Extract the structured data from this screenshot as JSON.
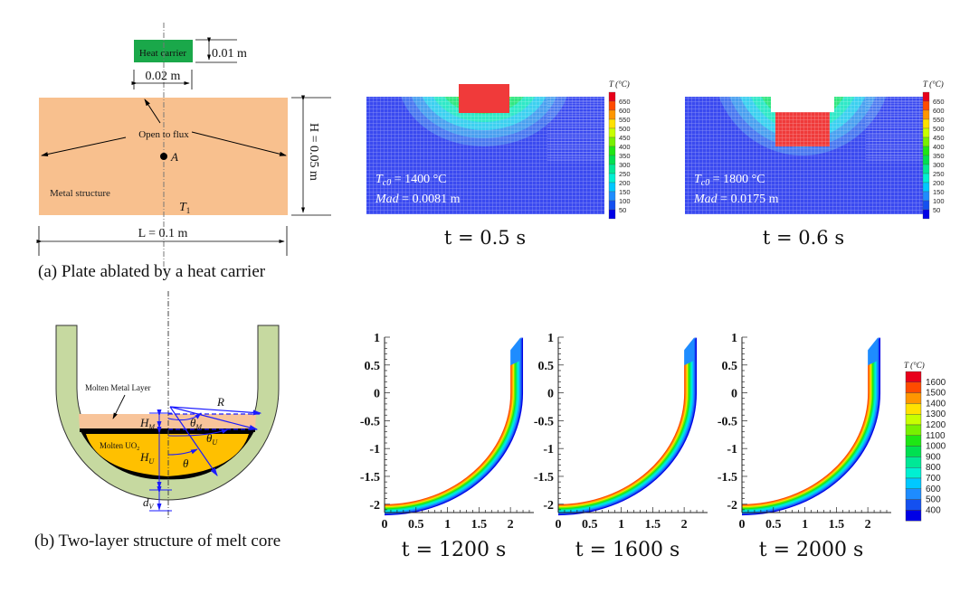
{
  "panel_a": {
    "caption": "(a) Plate ablated by a heat carrier",
    "heat_carrier_label": "Heat carrier",
    "carrier_height_dim": "0.01 m",
    "carrier_width_dim": "0.02 m",
    "open_flux_label": "Open to flux",
    "point_label": "A",
    "structure_label": "Metal structure",
    "temp_label": "T",
    "temp_sub": "1",
    "length_dim": "L = 0.1 m",
    "height_dim": "H = 0.05 m",
    "colors": {
      "plate": "#f8c08e",
      "carrier": "#1aa84a"
    }
  },
  "contour_top": {
    "legend_title": "T (°C)",
    "legend_values": [
      "650",
      "600",
      "550",
      "500",
      "450",
      "400",
      "350",
      "300",
      "250",
      "200",
      "150",
      "100",
      "50"
    ],
    "plots": [
      {
        "tc0": "T_c0 = 1400 °C",
        "tc0_main": "T",
        "tc0_sub": "c0",
        "tc0_rest": " = 1400 °C",
        "mad_main": "Mad",
        "mad_rest": " = 0.0081 m",
        "time": "t = 0.5 s"
      },
      {
        "tc0": "T_c0 = 1800 °C",
        "tc0_main": "T",
        "tc0_sub": "c0",
        "tc0_rest": " = 1800 °C",
        "mad_main": "Mad",
        "mad_rest": " = 0.0175 m",
        "time": "t = 0.6 s"
      }
    ]
  },
  "panel_b": {
    "caption": "(b) Two-layer structure of melt core",
    "metal_layer_label": "Molten Metal Layer",
    "uo2_label": "Molten UO",
    "uo2_sub": "2",
    "R": "R",
    "HM": "H",
    "HM_sub": "M",
    "HU": "H",
    "HU_sub": "U",
    "dV": "d",
    "dV_sub": "V",
    "thetaM": "θ",
    "thetaM_sub": "M",
    "thetaU": "θ",
    "thetaU_sub": "U",
    "theta": "θ",
    "colors": {
      "wall": "#c6d9a0",
      "metal": "#f8c49a",
      "uo2": "#ffc000",
      "crust": "#000000",
      "dim": "#1a1aff"
    }
  },
  "contour_bottom": {
    "legend_title": "T (°C)",
    "legend_values": [
      "1600",
      "1500",
      "1400",
      "1300",
      "1200",
      "1100",
      "1000",
      "900",
      "800",
      "700",
      "600",
      "500",
      "400"
    ],
    "y_ticks": [
      "1",
      "0.5",
      "0",
      "-0.5",
      "-1",
      "-1.5",
      "-2"
    ],
    "x_ticks": [
      "0",
      "0.5",
      "1",
      "1.5",
      "2"
    ],
    "plots": [
      {
        "time": "t = 1200 s"
      },
      {
        "time": "t = 1600 s"
      },
      {
        "time": "t = 2000 s"
      }
    ]
  },
  "colormap": [
    "#e8001a",
    "#ff4b00",
    "#ff9600",
    "#ffe100",
    "#c8ff00",
    "#78f000",
    "#1ee614",
    "#00e050",
    "#00e896",
    "#00f0d2",
    "#00c8ff",
    "#1e8cff",
    "#1450f0",
    "#0000e6"
  ]
}
